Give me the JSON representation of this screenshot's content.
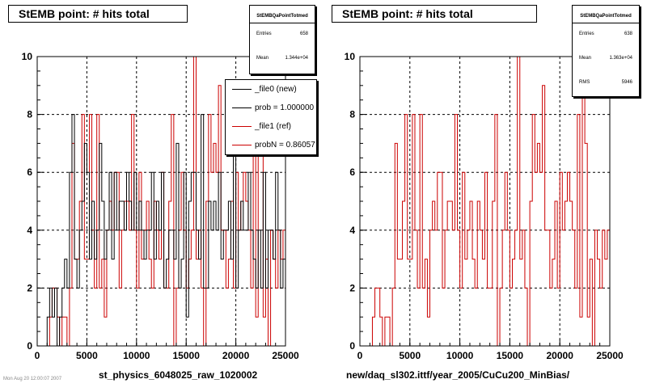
{
  "colors": {
    "ref": "#cc0000",
    "new": "#000000",
    "grid": "#000000"
  },
  "footnote": "Mon Aug 20 12:00:07 2007",
  "chart_data": [
    {
      "type": "histogram",
      "title": "StEMB point: # hits total",
      "xlabel": "st_physics_6048025_raw_1020002",
      "ylabel": "",
      "xlim": [
        0,
        25000
      ],
      "ylim": [
        0,
        10
      ],
      "x_ticks": [
        "0",
        "5000",
        "10000",
        "15000",
        "20000",
        "25000"
      ],
      "y_ticks": [
        "0",
        "2",
        "4",
        "6",
        "8",
        "10"
      ],
      "grid": true,
      "legend_placement": "top-right",
      "stats": {
        "title": "StEMBQaPointTotmed",
        "entries_label": "Entries",
        "entries": "658",
        "mean_label": "Mean",
        "mean": "1.344e+04"
      },
      "legend": [
        {
          "label": "_file0 (new)",
          "color": "#000000"
        },
        {
          "label": "prob = 1.000000",
          "color": "#000000"
        },
        {
          "label": "_file1 (ref)",
          "color": "#cc0000"
        },
        {
          "label": "probN = 0.86057",
          "color": "#cc0000"
        }
      ],
      "bin_width": 250,
      "series": [
        {
          "name": "_file0 (new)",
          "color": "#000000",
          "values": [
            0,
            0,
            0,
            0,
            1,
            2,
            1,
            2,
            0,
            1,
            2,
            3,
            2,
            6,
            8,
            3,
            2,
            4,
            5,
            7,
            6,
            3,
            5,
            3,
            4,
            7,
            5,
            3,
            4,
            6,
            3,
            6,
            4,
            5,
            5,
            4,
            6,
            5,
            4,
            6,
            4,
            5,
            4,
            3,
            4,
            4,
            6,
            3,
            5,
            4,
            6,
            2,
            3,
            4,
            4,
            3,
            7,
            2,
            3,
            6,
            1,
            5,
            6,
            6,
            4,
            3,
            8,
            2,
            2,
            5,
            4,
            5,
            4,
            6,
            3,
            4,
            4,
            5,
            3,
            7,
            2,
            4,
            5,
            4,
            4,
            6,
            4,
            3,
            2,
            4,
            2,
            6,
            2,
            4,
            4,
            3,
            6,
            4,
            2,
            3
          ]
        },
        {
          "name": "_file1 (ref)",
          "color": "#cc0000",
          "values": [
            0,
            0,
            0,
            0,
            0,
            1,
            2,
            2,
            1,
            0,
            1,
            1,
            0,
            2,
            7,
            3,
            3,
            5,
            8,
            3,
            3,
            8,
            4,
            2,
            8,
            2,
            3,
            1,
            4,
            5,
            4,
            6,
            6,
            2,
            4,
            5,
            5,
            4,
            8,
            4,
            2,
            6,
            3,
            4,
            5,
            3,
            2,
            5,
            4,
            3,
            6,
            2,
            2,
            5,
            8,
            0,
            2,
            4,
            6,
            4,
            2,
            3,
            4,
            10,
            3,
            4,
            2,
            0,
            5,
            8,
            6,
            7,
            6,
            9,
            4,
            4,
            2,
            3,
            5,
            2,
            6,
            4,
            5,
            6,
            5,
            4,
            2,
            8,
            1,
            9,
            7,
            1,
            3,
            0,
            4,
            3,
            2,
            4,
            3,
            4
          ]
        }
      ]
    },
    {
      "type": "histogram",
      "title": "StEMB point: # hits total",
      "xlabel": "new/daq_sl302.ittf/year_2005/CuCu200_MinBias/",
      "ylabel": "",
      "xlim": [
        0,
        25000
      ],
      "ylim": [
        0,
        10
      ],
      "x_ticks": [
        "0",
        "5000",
        "10000",
        "15000",
        "20000",
        "25000"
      ],
      "y_ticks": [
        "0",
        "2",
        "4",
        "6",
        "8",
        "10"
      ],
      "grid": true,
      "stats": {
        "title": "StEMBQaPointTotmed",
        "entries_label": "Entries",
        "entries": "638",
        "mean_label": "Mean",
        "mean": "1.363e+04",
        "rms_label": "RMS",
        "rms": "5946"
      },
      "bin_width": 250,
      "series": [
        {
          "name": "ref",
          "color": "#cc0000",
          "values": [
            0,
            0,
            0,
            0,
            0,
            1,
            2,
            2,
            1,
            0,
            1,
            1,
            0,
            2,
            7,
            3,
            3,
            5,
            8,
            3,
            3,
            8,
            4,
            2,
            8,
            2,
            3,
            1,
            4,
            5,
            4,
            6,
            6,
            2,
            4,
            5,
            5,
            4,
            8,
            4,
            2,
            6,
            3,
            4,
            5,
            3,
            2,
            5,
            4,
            3,
            6,
            2,
            2,
            5,
            8,
            0,
            2,
            4,
            6,
            4,
            2,
            3,
            4,
            10,
            3,
            4,
            2,
            0,
            5,
            8,
            6,
            7,
            6,
            9,
            4,
            4,
            2,
            3,
            5,
            2,
            6,
            4,
            5,
            6,
            5,
            4,
            2,
            8,
            1,
            9,
            7,
            1,
            3,
            0,
            4,
            3,
            2,
            4,
            3,
            4
          ]
        }
      ]
    }
  ]
}
